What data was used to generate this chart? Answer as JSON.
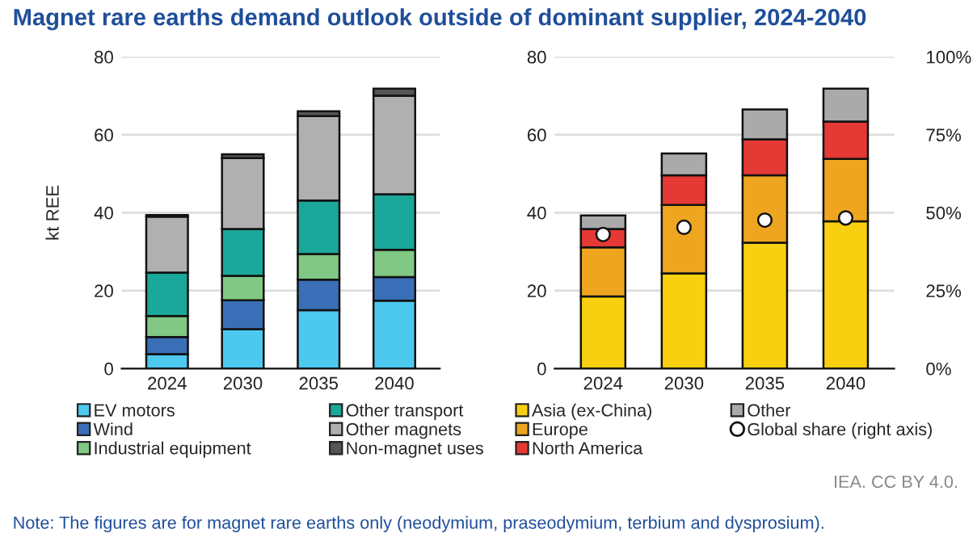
{
  "chart_data": [
    {
      "type": "bar",
      "title": "Magnet rare earths demand outlook outside of dominant supplier, 2024-2040",
      "ylabel": "kt REE",
      "categories": [
        "2024",
        "2030",
        "2035",
        "2040"
      ],
      "stacked": true,
      "ylim": [
        0,
        80
      ],
      "yticks": [
        0,
        20,
        40,
        60,
        80
      ],
      "grid": "y",
      "legend": "bottom",
      "series": [
        {
          "name": "EV motors",
          "color": "#4dc9f0",
          "values": [
            3.7,
            10.1,
            15.0,
            17.4
          ]
        },
        {
          "name": "Wind",
          "color": "#3a6fb8",
          "values": [
            4.4,
            7.4,
            7.8,
            6.1
          ]
        },
        {
          "name": "Industrial equipment",
          "color": "#80c883",
          "values": [
            5.4,
            6.3,
            6.6,
            7.0
          ]
        },
        {
          "name": "Other transport",
          "color": "#1aa89a",
          "values": [
            11.1,
            12.0,
            13.7,
            14.2
          ]
        },
        {
          "name": "Other magnets",
          "color": "#b0b0b0",
          "values": [
            14.4,
            18.2,
            21.7,
            25.3
          ]
        },
        {
          "name": "Non-magnet uses",
          "color": "#555555",
          "values": [
            0.4,
            1.0,
            1.2,
            1.8
          ]
        }
      ]
    },
    {
      "type": "bar",
      "categories": [
        "2024",
        "2030",
        "2035",
        "2040"
      ],
      "stacked": true,
      "ylim": [
        0,
        80
      ],
      "yticks": [
        0,
        20,
        40,
        60,
        80
      ],
      "y2lim": [
        0,
        100
      ],
      "y2ticks": [
        {
          "value": 0,
          "label": "0%"
        },
        {
          "value": 25,
          "label": "25%"
        },
        {
          "value": 50,
          "label": "50%"
        },
        {
          "value": 75,
          "label": "75%"
        },
        {
          "value": 100,
          "label": "100%"
        }
      ],
      "grid": "y",
      "legend": "bottom",
      "annotations": [
        "IEA. CC BY 4.0.",
        "Note: The figures are for magnet rare earths only (neodymium, praseodymium, terbium and dysprosium)."
      ],
      "series": [
        {
          "name": "Asia (ex-China)",
          "color": "#f9d00f",
          "values": [
            18.5,
            24.4,
            32.3,
            37.8
          ]
        },
        {
          "name": "Europe",
          "color": "#eea620",
          "values": [
            12.6,
            17.6,
            17.3,
            16.0
          ]
        },
        {
          "name": "North America",
          "color": "#e53935",
          "values": [
            4.7,
            7.6,
            9.2,
            9.6
          ]
        },
        {
          "name": "Other",
          "color": "#aaaaaa",
          "values": [
            3.5,
            5.6,
            7.7,
            8.4
          ]
        },
        {
          "name": "Global share (right axis)",
          "type": "scatter",
          "axis": "y2",
          "marker": "circle",
          "color": "#ffffff",
          "values": [
            43.0,
            45.3,
            47.6,
            48.3
          ]
        }
      ]
    }
  ]
}
